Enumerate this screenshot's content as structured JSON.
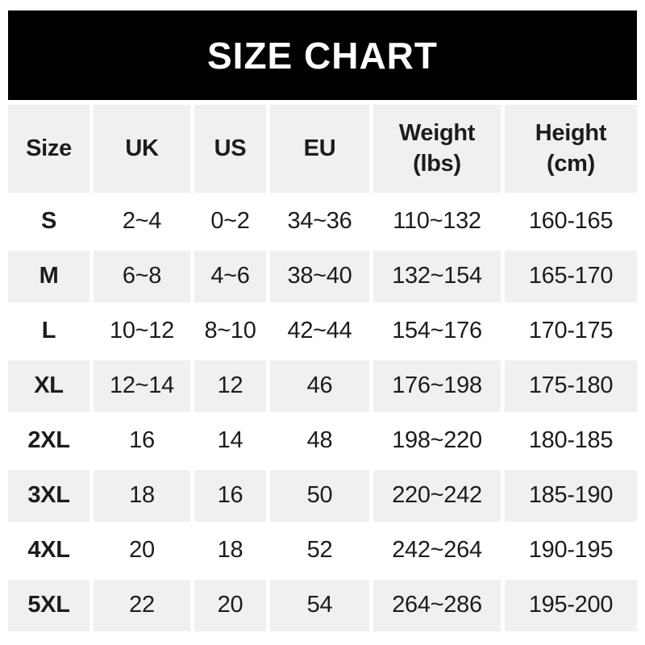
{
  "banner": {
    "title": "SIZE CHART"
  },
  "colors": {
    "banner_bg": "#000000",
    "banner_text": "#ffffff",
    "alt_row_bg": "#f0f0ef",
    "text": "#1c1c1e"
  },
  "chart_data": {
    "type": "table",
    "title": "SIZE CHART",
    "columns": [
      {
        "label": "Size",
        "sublabel": ""
      },
      {
        "label": "UK",
        "sublabel": ""
      },
      {
        "label": "US",
        "sublabel": ""
      },
      {
        "label": "EU",
        "sublabel": ""
      },
      {
        "label": "Weight",
        "sublabel": "(lbs)"
      },
      {
        "label": "Height",
        "sublabel": "(cm)"
      }
    ],
    "rows": [
      {
        "size": "S",
        "uk": "2~4",
        "us": "0~2",
        "eu": "34~36",
        "weight": "110~132",
        "height": "160-165"
      },
      {
        "size": "M",
        "uk": "6~8",
        "us": "4~6",
        "eu": "38~40",
        "weight": "132~154",
        "height": "165-170"
      },
      {
        "size": "L",
        "uk": "10~12",
        "us": "8~10",
        "eu": "42~44",
        "weight": "154~176",
        "height": "170-175"
      },
      {
        "size": "XL",
        "uk": "12~14",
        "us": "12",
        "eu": "46",
        "weight": "176~198",
        "height": "175-180"
      },
      {
        "size": "2XL",
        "uk": "16",
        "us": "14",
        "eu": "48",
        "weight": "198~220",
        "height": "180-185"
      },
      {
        "size": "3XL",
        "uk": "18",
        "us": "16",
        "eu": "50",
        "weight": "220~242",
        "height": "185-190"
      },
      {
        "size": "4XL",
        "uk": "20",
        "us": "18",
        "eu": "52",
        "weight": "242~264",
        "height": "190-195"
      },
      {
        "size": "5XL",
        "uk": "22",
        "us": "20",
        "eu": "54",
        "weight": "264~286",
        "height": "195-200"
      }
    ]
  }
}
